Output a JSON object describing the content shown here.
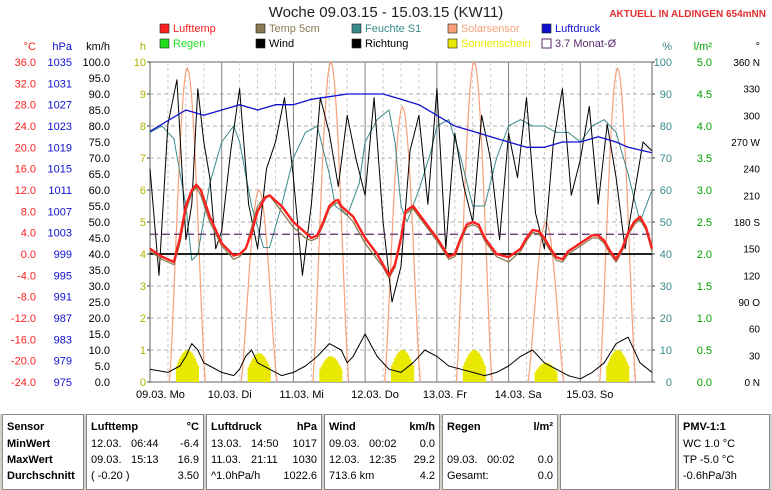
{
  "header": {
    "title": "Woche 09.03.15 - 15.03.15 (KW11)",
    "live": "AKTUELL IN ALDINGEN 654mNN"
  },
  "legend": [
    {
      "label": "Lufttemp",
      "color": "#ff2020"
    },
    {
      "label": "Temp 5cm",
      "color": "#8a7a50"
    },
    {
      "label": "Feuchte S1",
      "color": "#3a8a8a"
    },
    {
      "label": "Solarsensor",
      "color": "#f7a07a"
    },
    {
      "label": "Luftdruck",
      "color": "#1010d0"
    },
    {
      "label": "Regen",
      "color": "#20e020"
    },
    {
      "label": "Wind",
      "color": "#000000"
    },
    {
      "label": "Richtung",
      "color": "#000000"
    },
    {
      "label": "Sonnenschein",
      "color": "#e8e800"
    },
    {
      "label": "3.7 Monat-Ø",
      "color": "#5a2a6a"
    }
  ],
  "chart_data": {
    "type": "line",
    "x_ticks": [
      "09.03. Mo",
      "10.03. Di",
      "11.03. Mi",
      "12.03. Do",
      "13.03. Fr",
      "14.03. Sa",
      "15.03. So"
    ],
    "axes": {
      "temp": {
        "unit": "°C",
        "ticks": [
          "36.0",
          "32.0",
          "28.0",
          "24.0",
          "20.0",
          "16.0",
          "12.0",
          "8.0",
          "4.0",
          "0.0",
          "-4.0",
          "-8.0",
          "-12.0",
          "-16.0",
          "-20.0",
          "-24.0"
        ],
        "range": [
          -24,
          36
        ],
        "color": "#ff2020"
      },
      "pressure": {
        "unit": "hPa",
        "ticks": [
          "1035",
          "1031",
          "1027",
          "1023",
          "1019",
          "1015",
          "1011",
          "1007",
          "1003",
          "999",
          "995",
          "991",
          "987",
          "983",
          "979",
          "975"
        ],
        "range": [
          975,
          1035
        ],
        "color": "#1010d0"
      },
      "wind": {
        "unit": "km/h",
        "ticks": [
          "100.0",
          "95.0",
          "90.0",
          "85.0",
          "80.0",
          "75.0",
          "70.0",
          "65.0",
          "60.0",
          "55.0",
          "50.0",
          "45.0",
          "40.0",
          "35.0",
          "30.0",
          "25.0",
          "20.0",
          "15.0",
          "10.0",
          "5.0",
          "0.0"
        ],
        "range": [
          0,
          100
        ],
        "color": "#000000"
      },
      "sun": {
        "unit": "h",
        "ticks": [
          "10",
          "9",
          "8",
          "7",
          "6",
          "5",
          "4",
          "3",
          "2",
          "1",
          "0"
        ],
        "range": [
          0,
          10
        ],
        "color": "#b0b000"
      },
      "humidity": {
        "unit": "%",
        "ticks": [
          "100",
          "90",
          "80",
          "70",
          "60",
          "50",
          "40",
          "30",
          "20",
          "10",
          "0"
        ],
        "range": [
          0,
          100
        ],
        "color": "#3a8a8a"
      },
      "rain": {
        "unit": "l/m²",
        "ticks": [
          "5.0",
          "4.5",
          "4.0",
          "3.5",
          "3.0",
          "2.5",
          "2.0",
          "1.5",
          "1.0",
          "0.5",
          "0.0"
        ],
        "range": [
          0,
          5
        ],
        "color": "#00a000"
      },
      "direction": {
        "unit": "°",
        "ticks": [
          "360 N",
          "330",
          "300",
          "270 W",
          "240",
          "210",
          "180 S",
          "150",
          "120",
          "90 O",
          "60",
          "30",
          "0   N"
        ],
        "range": [
          0,
          360
        ],
        "color": "#000000"
      }
    },
    "monthly_avg_temp": 3.7,
    "zero_line_temp": 0,
    "series": [
      {
        "name": "Lufttemp",
        "axis": "temp",
        "color": "#ff2020",
        "t": [
          0,
          4,
          8,
          10,
          12,
          14,
          15.5,
          17,
          20,
          24,
          28,
          30,
          32,
          34,
          36,
          38.5,
          40,
          44,
          48,
          52,
          54,
          56,
          58,
          60,
          62,
          63,
          64,
          68,
          72,
          76,
          78,
          80,
          82,
          84,
          85.5,
          88,
          92,
          96,
          100,
          102,
          104,
          106,
          108,
          110,
          112,
          116,
          120,
          124,
          126,
          128,
          130,
          132,
          134,
          136,
          138,
          140,
          144,
          148,
          150,
          152,
          154,
          156,
          158,
          160,
          162,
          164,
          166,
          168
        ],
        "v": [
          1.0,
          -0.5,
          -1.5,
          3,
          9,
          12,
          13,
          12,
          7,
          2,
          -0.3,
          0,
          1,
          4,
          8,
          10.5,
          11,
          9,
          6,
          4,
          3,
          3.5,
          6,
          9,
          10,
          10.1,
          9,
          7,
          3,
          0,
          -2,
          -4,
          -2,
          3,
          8,
          9,
          6,
          3,
          -0.5,
          0,
          3,
          5.5,
          6,
          5.5,
          3,
          0,
          -0.6,
          1,
          3,
          4.5,
          4.3,
          3,
          1,
          -0.6,
          -1,
          0.5,
          2,
          3.5,
          3.5,
          2.5,
          0.5,
          -1,
          1,
          4,
          6,
          7,
          5,
          1
        ]
      },
      {
        "name": "Temp 5cm",
        "axis": "temp",
        "color": "#8a7a50",
        "t": [
          0,
          4,
          8,
          10,
          12,
          14,
          15.5,
          17,
          20,
          24,
          28,
          30,
          32,
          34,
          36,
          38.5,
          40,
          44,
          48,
          52,
          54,
          56,
          58,
          60,
          62,
          63,
          64,
          68,
          72,
          76,
          78,
          80,
          82,
          84,
          85.5,
          88,
          92,
          96,
          100,
          102,
          104,
          106,
          108,
          110,
          112,
          116,
          120,
          124,
          126,
          128,
          130,
          132,
          134,
          136,
          138,
          140,
          144,
          148,
          150,
          152,
          154,
          156,
          158,
          160,
          162,
          164,
          166,
          168
        ],
        "v": [
          0.5,
          -1,
          -2,
          2,
          8,
          11.5,
          12.5,
          11,
          6,
          1.5,
          -1,
          -0.5,
          1,
          5,
          9,
          10.8,
          11,
          8,
          5,
          3,
          2.5,
          3,
          5.5,
          8.5,
          9.5,
          9.6,
          8.5,
          6,
          2,
          -1,
          -2.5,
          -4.5,
          -2.5,
          2.5,
          7.5,
          8.5,
          5.5,
          2.5,
          -1,
          -0.5,
          2.5,
          5,
          5.5,
          5,
          2.5,
          -0.5,
          -1.5,
          0.5,
          2.5,
          4,
          3.8,
          2.5,
          0.5,
          -1.2,
          -1.5,
          0,
          1.5,
          3,
          3,
          2,
          0,
          -1.5,
          0.5,
          3.5,
          5.5,
          6.5,
          4.5,
          0.5
        ]
      },
      {
        "name": "Feuchte S1",
        "axis": "humidity",
        "color": "#3a8a8a",
        "t": [
          0,
          4,
          8,
          12,
          14,
          16,
          20,
          24,
          28,
          30,
          34,
          38,
          40,
          44,
          48,
          52,
          56,
          60,
          62,
          66,
          70,
          72,
          76,
          80,
          82,
          84,
          86,
          90,
          94,
          96,
          100,
          104,
          108,
          112,
          116,
          120,
          124,
          128,
          132,
          136,
          140,
          144,
          148,
          152,
          156,
          160,
          164,
          168
        ],
        "v": [
          78,
          80,
          76,
          55,
          38,
          40,
          62,
          75,
          80,
          75,
          55,
          42,
          42,
          55,
          70,
          78,
          80,
          65,
          55,
          52,
          62,
          75,
          82,
          85,
          75,
          55,
          50,
          60,
          72,
          80,
          82,
          70,
          55,
          55,
          70,
          80,
          82,
          80,
          80,
          78,
          78,
          75,
          80,
          82,
          78,
          65,
          50,
          60
        ]
      },
      {
        "name": "Luftdruck",
        "axis": "pressure",
        "color": "#1010d0",
        "t": [
          0,
          6,
          12,
          18,
          24,
          30,
          36,
          42,
          48,
          54,
          60,
          66,
          72,
          78,
          84,
          90,
          96,
          102,
          108,
          114,
          120,
          126,
          132,
          138,
          144,
          150,
          156,
          160,
          164,
          168
        ],
        "v": [
          1022,
          1024,
          1026,
          1025,
          1026,
          1027,
          1026,
          1027,
          1027,
          1028,
          1028.5,
          1029,
          1029,
          1029,
          1028,
          1027,
          1025,
          1023,
          1022,
          1021,
          1020,
          1019,
          1019,
          1020,
          1020,
          1021,
          1020,
          1019,
          1018.5,
          1018
        ]
      },
      {
        "name": "Solarsensor",
        "axis": "humidity",
        "color": "#f7a07a",
        "days": [
          0,
          1,
          2,
          3,
          4,
          5,
          6
        ],
        "peaks": [
          98,
          60,
          100,
          86,
          100,
          50,
          98
        ]
      },
      {
        "name": "Wind",
        "axis": "wind",
        "color": "#000000",
        "t": [
          0,
          6,
          10,
          12,
          14,
          16,
          18,
          20,
          24,
          28,
          30,
          32,
          34,
          36,
          40,
          44,
          48,
          52,
          56,
          60,
          64,
          66,
          68,
          72,
          76,
          80,
          84,
          88,
          92,
          96,
          100,
          104,
          108,
          112,
          116,
          120,
          124,
          128,
          132,
          136,
          140,
          144,
          148,
          152,
          156,
          160,
          164,
          168
        ],
        "v": [
          4,
          3,
          5,
          8,
          12,
          10,
          6,
          5,
          3,
          2,
          4,
          8,
          10,
          6,
          4,
          2,
          3,
          5,
          8,
          12,
          10,
          6,
          8,
          15,
          8,
          4,
          3,
          6,
          10,
          8,
          5,
          4,
          3,
          2,
          3,
          5,
          8,
          10,
          6,
          4,
          2,
          1,
          3,
          6,
          12,
          14,
          6,
          3
        ]
      },
      {
        "name": "Richtung",
        "axis": "direction",
        "color": "#000000",
        "t": [
          0,
          3,
          6,
          9,
          12,
          14,
          16,
          18,
          20,
          22,
          24,
          27,
          30,
          33,
          36,
          39,
          42,
          45,
          48,
          51,
          54,
          57,
          60,
          63,
          66,
          69,
          72,
          75,
          78,
          81,
          84,
          87,
          90,
          93,
          96,
          99,
          102,
          105,
          108,
          111,
          114,
          117,
          120,
          123,
          126,
          129,
          132,
          135,
          138,
          141,
          144,
          147,
          150,
          153,
          156,
          159,
          162,
          165,
          168
        ],
        "v": [
          240,
          120,
          290,
          340,
          160,
          200,
          330,
          270,
          230,
          150,
          170,
          260,
          330,
          200,
          150,
          240,
          270,
          320,
          230,
          120,
          200,
          320,
          280,
          220,
          300,
          250,
          210,
          320,
          180,
          90,
          130,
          260,
          300,
          200,
          330,
          150,
          280,
          220,
          180,
          300,
          250,
          160,
          280,
          230,
          320,
          190,
          150,
          270,
          330,
          210,
          250,
          310,
          200,
          290,
          230,
          150,
          210,
          270,
          260
        ]
      },
      {
        "name": "Sonnenschein",
        "axis": "sun",
        "color": "#e8e800",
        "days": [
          0,
          1,
          2,
          3,
          4,
          5,
          6
        ],
        "total": [
          1.0,
          0.9,
          0.8,
          1.0,
          1.0,
          0.6,
          1.0
        ]
      },
      {
        "name": "Regen",
        "axis": "rain",
        "color": "#20e020",
        "values": []
      }
    ]
  },
  "panels": {
    "sensor": {
      "h": "Sensor",
      "rows": [
        "MinWert",
        "MaxWert",
        "Durchschnitt"
      ]
    },
    "lufttemp": {
      "h": "Lufttemp",
      "u": "°C",
      "rows": [
        [
          "12.03.",
          "06:44",
          "-6.4"
        ],
        [
          "09.03.",
          "15:13",
          "16.9"
        ],
        [
          "( -0.20 )",
          "",
          "3.50"
        ]
      ]
    },
    "luftdruck": {
      "h": "Luftdruck",
      "u": "hPa",
      "rows": [
        [
          "13.03.",
          "14:50",
          "1017"
        ],
        [
          "11.03.",
          "21:11",
          "1030"
        ],
        [
          "^1.0hPa/h",
          "",
          "1022.6"
        ]
      ]
    },
    "wind": {
      "h": "Wind",
      "u": "km/h",
      "rows": [
        [
          "09.03.",
          "00:02",
          "0.0"
        ],
        [
          "12.03.",
          "12:35",
          "29.2"
        ],
        [
          "713.6 km",
          "",
          "4.2"
        ]
      ]
    },
    "regen": {
      "h": "Regen",
      "u": "l/m²",
      "rows": [
        [
          "",
          "",
          ""
        ],
        [
          "09.03.",
          "00:02",
          "0.0"
        ],
        [
          "Gesamt:",
          "",
          "0.0"
        ]
      ]
    },
    "pmv": {
      "h": "PMV-1:1",
      "rows": [
        "WC 1.0 °C",
        "TP -5.0 °C",
        "-0.6hPa/3h"
      ]
    }
  }
}
